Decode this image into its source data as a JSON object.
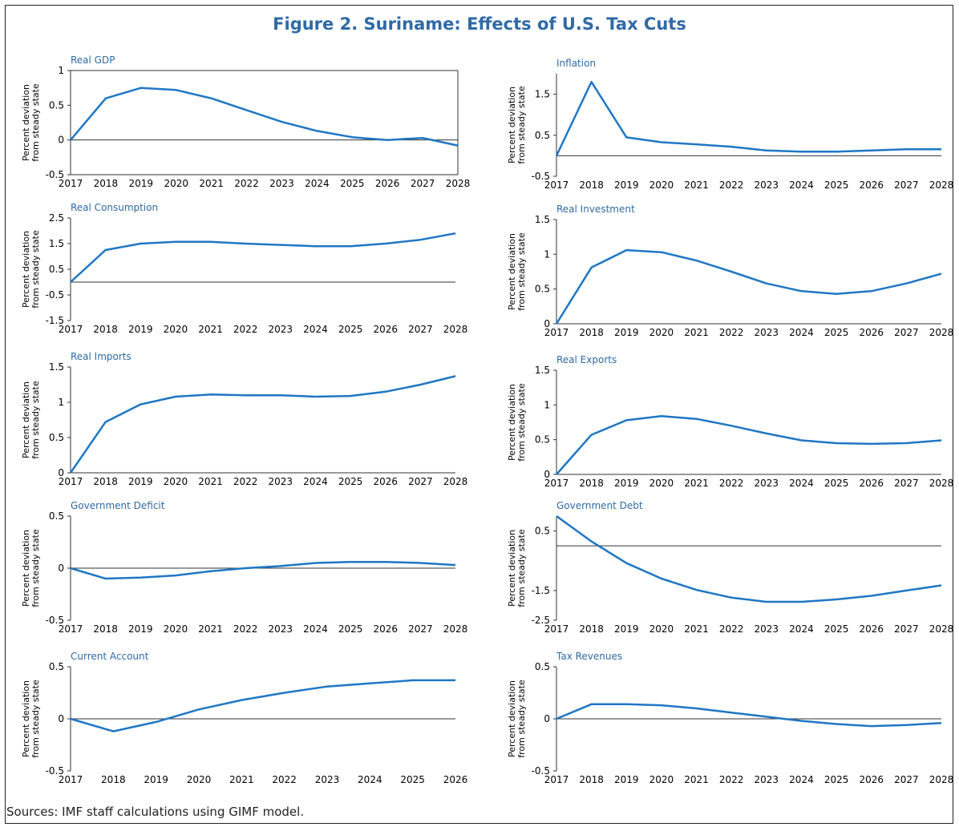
{
  "figure_title": "Figure 2. Suriname: Effects of U.S. Tax Cuts",
  "source_note": "Sources: IMF staff calculations using GIMF model.",
  "ylabel_line1": "Percent deviation",
  "ylabel_line2": "from steady state",
  "line_color": "#1f77c4",
  "chart_data": [
    {
      "type": "line",
      "title": "Real GDP",
      "categories": [
        "2017",
        "2018",
        "2019",
        "2020",
        "2021",
        "2022",
        "2023",
        "2024",
        "2025",
        "2026",
        "2027",
        "2028"
      ],
      "values": [
        0,
        0.6,
        0.75,
        0.72,
        0.6,
        0.43,
        0.26,
        0.13,
        0.04,
        0.0,
        0.03,
        -0.08
      ],
      "yticks": [
        -0.5,
        0,
        0.5,
        1
      ],
      "yticklabels": [
        "-0.5",
        "0",
        "0.5",
        "1"
      ],
      "ylim": [
        -0.5,
        1
      ],
      "boxed": true
    },
    {
      "type": "line",
      "title": "Inflation",
      "categories": [
        "2017",
        "2018",
        "2019",
        "2020",
        "2021",
        "2022",
        "2023",
        "2024",
        "2025",
        "2026",
        "2027",
        "2028"
      ],
      "values": [
        0,
        1.8,
        0.45,
        0.33,
        0.28,
        0.22,
        0.13,
        0.1,
        0.1,
        0.13,
        0.16,
        0.16
      ],
      "yticks": [
        -0.5,
        0.5,
        1.5
      ],
      "yticklabels": [
        "-0.5",
        "0.5",
        "1.5"
      ],
      "ylim": [
        -0.5,
        2
      ],
      "boxed": false
    },
    {
      "type": "line",
      "title": "Real Consumption",
      "categories": [
        "2017",
        "2018",
        "2019",
        "2020",
        "2021",
        "2022",
        "2023",
        "2024",
        "2025",
        "2026",
        "2027",
        "2028"
      ],
      "values": [
        0,
        1.25,
        1.5,
        1.57,
        1.57,
        1.5,
        1.45,
        1.4,
        1.4,
        1.5,
        1.65,
        1.9
      ],
      "yticks": [
        -1.5,
        -0.5,
        0.5,
        1.5,
        2.5
      ],
      "yticklabels": [
        "-1.5",
        "-0.5",
        "0.5",
        "1.5",
        "2.5"
      ],
      "ylim": [
        -1.5,
        2.5
      ],
      "boxed": false
    },
    {
      "type": "line",
      "title": "Real Investment",
      "categories": [
        "2017",
        "2018",
        "2019",
        "2020",
        "2021",
        "2022",
        "2023",
        "2024",
        "2025",
        "2026",
        "2027",
        "2028"
      ],
      "values": [
        0,
        0.81,
        1.06,
        1.03,
        0.91,
        0.75,
        0.58,
        0.47,
        0.43,
        0.47,
        0.58,
        0.72
      ],
      "yticks": [
        0,
        0.5,
        1,
        1.5
      ],
      "yticklabels": [
        "0",
        "0.5",
        "1",
        "1.5"
      ],
      "ylim": [
        0,
        1.5
      ],
      "boxed": false
    },
    {
      "type": "line",
      "title": "Real Imports",
      "categories": [
        "2017",
        "2018",
        "2019",
        "2020",
        "2021",
        "2022",
        "2023",
        "2024",
        "2025",
        "2026",
        "2027",
        "2028"
      ],
      "values": [
        0,
        0.72,
        0.97,
        1.08,
        1.11,
        1.1,
        1.1,
        1.08,
        1.09,
        1.15,
        1.25,
        1.37
      ],
      "yticks": [
        0,
        0.5,
        1,
        1.5
      ],
      "yticklabels": [
        "0",
        "0.5",
        "1",
        "1.5"
      ],
      "ylim": [
        0,
        1.5
      ],
      "boxed": false
    },
    {
      "type": "line",
      "title": "Real Exports",
      "categories": [
        "2017",
        "2018",
        "2019",
        "2020",
        "2021",
        "2022",
        "2023",
        "2024",
        "2025",
        "2026",
        "2027",
        "2028"
      ],
      "values": [
        0,
        0.57,
        0.78,
        0.84,
        0.8,
        0.7,
        0.59,
        0.49,
        0.45,
        0.44,
        0.45,
        0.49
      ],
      "yticks": [
        0,
        0.5,
        1,
        1.5
      ],
      "yticklabels": [
        "0",
        "0.5",
        "1",
        "1.5"
      ],
      "ylim": [
        0,
        1.5
      ],
      "boxed": false
    },
    {
      "type": "line",
      "title": "Government Deficit",
      "categories": [
        "2017",
        "2018",
        "2019",
        "2020",
        "2021",
        "2022",
        "2023",
        "2024",
        "2025",
        "2026",
        "2027",
        "2028"
      ],
      "values": [
        0,
        -0.1,
        -0.09,
        -0.07,
        -0.03,
        0.0,
        0.02,
        0.05,
        0.06,
        0.06,
        0.05,
        0.03
      ],
      "yticks": [
        -0.5,
        0,
        0.5
      ],
      "yticklabels": [
        "-0.5",
        "0",
        "0.5"
      ],
      "ylim": [
        -0.5,
        0.5
      ],
      "boxed": false
    },
    {
      "type": "line",
      "title": "Government Debt",
      "categories": [
        "2017",
        "2018",
        "2019",
        "2020",
        "2021",
        "2022",
        "2023",
        "2024",
        "2025",
        "2026",
        "2027",
        "2028"
      ],
      "values": [
        1.0,
        0.15,
        -0.58,
        -1.1,
        -1.48,
        -1.74,
        -1.88,
        -1.88,
        -1.8,
        -1.68,
        -1.5,
        -1.33
      ],
      "yticks": [
        -2.5,
        -1.5,
        0.5
      ],
      "yticklabels": [
        "-2.5",
        "-1.5",
        "0.5"
      ],
      "ylim": [
        -2.5,
        1.0
      ],
      "boxed": false
    },
    {
      "type": "line",
      "title": "Current Account",
      "categories": [
        "2017",
        "2018",
        "2019",
        "2020",
        "2021",
        "2022",
        "2023",
        "2024",
        "2025",
        "2026"
      ],
      "values": [
        0,
        -0.12,
        -0.03,
        0.09,
        0.18,
        0.25,
        0.31,
        0.34,
        0.37,
        0.37
      ],
      "yticks": [
        -0.5,
        0,
        0.5
      ],
      "yticklabels": [
        "-0.5",
        "0",
        "0.5"
      ],
      "ylim": [
        -0.5,
        0.5
      ],
      "boxed": false
    },
    {
      "type": "line",
      "title": "Tax Revenues",
      "categories": [
        "2017",
        "2018",
        "2019",
        "2020",
        "2021",
        "2022",
        "2023",
        "2024",
        "2025",
        "2026",
        "2027",
        "2028"
      ],
      "values": [
        0,
        0.14,
        0.14,
        0.13,
        0.1,
        0.06,
        0.02,
        -0.02,
        -0.05,
        -0.07,
        -0.06,
        -0.04
      ],
      "yticks": [
        -0.5,
        0,
        0.5
      ],
      "yticklabels": [
        "-0.5",
        "0",
        "0.5"
      ],
      "ylim": [
        -0.5,
        0.5
      ],
      "boxed": false
    }
  ]
}
